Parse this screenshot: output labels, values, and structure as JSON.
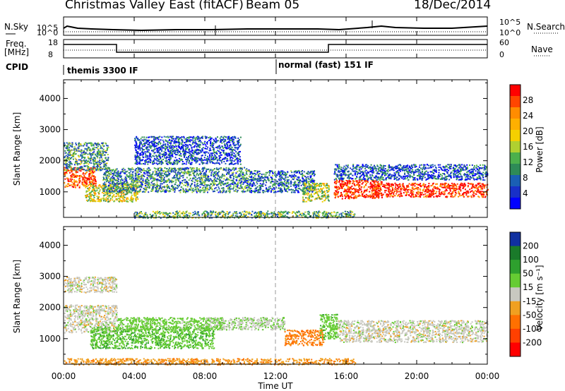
{
  "header": {
    "title": "Christmas Valley East (fitACF)",
    "beam": "Beam 05",
    "date": "18/Dec/2014"
  },
  "strip_panels": {
    "nsky_label": "N.Sky",
    "nsky_ticks": [
      "10^5",
      "10^0"
    ],
    "nsearch_label": "N.Search",
    "nsearch_ticks": [
      "10^5",
      "10^0"
    ],
    "freq_label_1": "Freq.",
    "freq_label_2": "[MHz]",
    "freq_ticks": [
      "18",
      "8"
    ],
    "nave_label": "Nave",
    "nave_ticks": [
      "60",
      "0"
    ],
    "cpid_label": "CPID",
    "cpid_segments": [
      "themis 3300 IF",
      "normal (fast) 151 IF"
    ]
  },
  "x_axis": {
    "label": "Time UT",
    "tick_labels": [
      "00:00",
      "04:00",
      "08:00",
      "12:00",
      "16:00",
      "20:00",
      "00:00"
    ]
  },
  "power_colorbar": {
    "label": "Power [dB]",
    "ticks": [
      "28",
      "24",
      "20",
      "16",
      "12",
      "8",
      "4"
    ],
    "colors": [
      "#ff0000",
      "#ff4500",
      "#ff8c00",
      "#ffb000",
      "#f5d000",
      "#b0d030",
      "#4cb04c",
      "#2e8b57",
      "#1a5fb4",
      "#1830c8",
      "#0000ff"
    ]
  },
  "velocity_colorbar": {
    "label": "Velocity [m s⁻¹]",
    "ticks": [
      "200",
      "100",
      "50",
      "15",
      "-15",
      "-50",
      "-100",
      "-200"
    ],
    "colors": [
      "#1030a0",
      "#1a7a2a",
      "#2ea02e",
      "#66cc33",
      "#c8c8c0",
      "#f0a020",
      "#ff7000",
      "#ff4000",
      "#ff0000"
    ]
  },
  "chart_data": [
    {
      "type": "heatmap",
      "panel": "Power",
      "ylabel": "Slant Range [km]",
      "xlabel": "",
      "ylim": [
        180,
        4600
      ],
      "xlim_hours": [
        0,
        24
      ],
      "y_ticks": [
        1000,
        2000,
        3000,
        4000
      ],
      "x_ticks_hours": [
        0,
        4,
        8,
        12,
        16,
        20,
        24
      ],
      "colorbar_range_db": [
        0,
        30
      ],
      "scatter_bands": [
        {
          "t0": 0.0,
          "t1": 1.8,
          "r0": 1150,
          "r1": 1800,
          "value": 26
        },
        {
          "t0": 0.0,
          "t1": 2.5,
          "r0": 1700,
          "r1": 2600,
          "value": 10
        },
        {
          "t0": 1.2,
          "t1": 4.2,
          "r0": 700,
          "r1": 1300,
          "value": 16
        },
        {
          "t0": 2.2,
          "t1": 10.5,
          "r0": 1000,
          "r1": 1800,
          "value": 9
        },
        {
          "t0": 4.0,
          "t1": 10.0,
          "r0": 1900,
          "r1": 2800,
          "value": 5
        },
        {
          "t0": 10.5,
          "t1": 14.2,
          "r0": 1000,
          "r1": 1700,
          "value": 7
        },
        {
          "t0": 13.5,
          "t1": 15.0,
          "r0": 700,
          "r1": 1300,
          "value": 15
        },
        {
          "t0": 15.3,
          "t1": 18.0,
          "r0": 800,
          "r1": 1400,
          "value": 28
        },
        {
          "t0": 17.5,
          "t1": 24.0,
          "r0": 850,
          "r1": 1300,
          "value": 28
        },
        {
          "t0": 15.3,
          "t1": 24.0,
          "r0": 1400,
          "r1": 1900,
          "value": 6
        },
        {
          "t0": 4.0,
          "t1": 16.5,
          "r0": 180,
          "r1": 400,
          "value": 12
        }
      ]
    },
    {
      "type": "heatmap",
      "panel": "Velocity",
      "ylabel": "Slant Range [km]",
      "xlabel": "Time UT",
      "ylim": [
        180,
        4600
      ],
      "xlim_hours": [
        0,
        24
      ],
      "y_ticks": [
        1000,
        2000,
        3000,
        4000
      ],
      "x_ticks_hours": [
        0,
        4,
        8,
        12,
        16,
        20,
        24
      ],
      "colorbar_range_ms": [
        -200,
        200
      ],
      "scatter_bands": [
        {
          "t0": 0.0,
          "t1": 3.0,
          "r0": 1200,
          "r1": 2100,
          "value": 0
        },
        {
          "t0": 1.5,
          "t1": 8.5,
          "r0": 700,
          "r1": 1400,
          "value": 40
        },
        {
          "t0": 3.0,
          "t1": 9.0,
          "r0": 1300,
          "r1": 1700,
          "value": 30
        },
        {
          "t0": 8.0,
          "t1": 12.5,
          "r0": 1300,
          "r1": 1700,
          "value": 10
        },
        {
          "t0": 12.5,
          "t1": 14.7,
          "r0": 800,
          "r1": 1300,
          "value": -60
        },
        {
          "t0": 14.5,
          "t1": 15.5,
          "r0": 1000,
          "r1": 1800,
          "value": 35
        },
        {
          "t0": 15.5,
          "t1": 24.0,
          "r0": 900,
          "r1": 1600,
          "value": 0
        },
        {
          "t0": 0.0,
          "t1": 16.5,
          "r0": 180,
          "r1": 380,
          "value": -40
        },
        {
          "t0": 0.0,
          "t1": 3.0,
          "r0": 2500,
          "r1": 3000,
          "value": 0
        }
      ]
    }
  ]
}
